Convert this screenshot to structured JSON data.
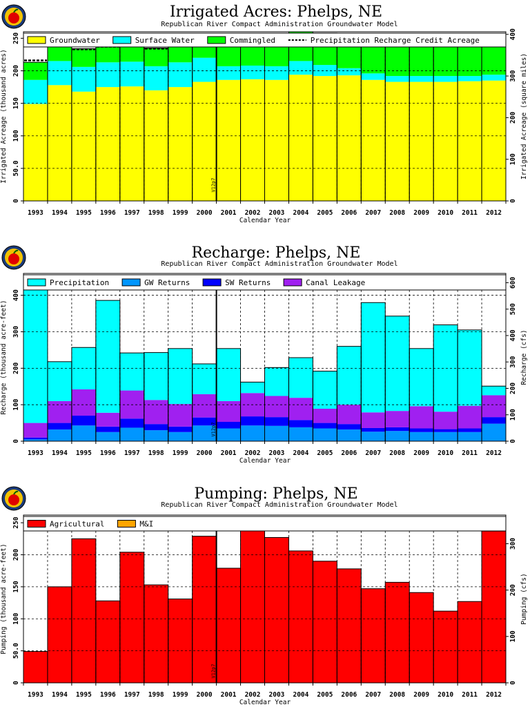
{
  "subtitle": "Republican River Compact Administration Groundwater Model",
  "marker_label": "V12p7",
  "chart_data": [
    {
      "id": "irrigated",
      "type": "bar",
      "title": "Irrigated Acres: Phelps, NE",
      "xlabel": "Calendar Year",
      "ylabel": "Irrigated Acreage (thousand acres)",
      "ylabel_right": "Irrigated Acreage (square miles)",
      "stacked": true,
      "ylim": [
        0,
        260
      ],
      "y_ticks": [
        "0",
        "50.0",
        "100",
        "150",
        "200",
        "250"
      ],
      "y_tick_values": [
        0,
        50,
        100,
        150,
        200,
        250
      ],
      "y2_ticks": [
        "0",
        "100",
        "200",
        "300",
        "400"
      ],
      "y2_tick_values": [
        0,
        100,
        200,
        300,
        400
      ],
      "y2_per_y": 1.5625,
      "legend_position": "top",
      "categories": [
        "1993",
        "1994",
        "1995",
        "1996",
        "1997",
        "1998",
        "1999",
        "2000",
        "2001",
        "2002",
        "2003",
        "2004",
        "2005",
        "2006",
        "2007",
        "2008",
        "2009",
        "2010",
        "2011",
        "2012"
      ],
      "series": [
        {
          "name": "Groundwater",
          "color": "#ffff00",
          "values": [
            149,
            178,
            168,
            175,
            176,
            170,
            175,
            183,
            186,
            187,
            186,
            194,
            192,
            193,
            186,
            183,
            183,
            183,
            184,
            185
          ]
        },
        {
          "name": "Surface Water",
          "color": "#00ffff",
          "values": [
            37,
            37,
            38,
            38,
            38,
            37,
            38,
            37,
            21,
            21,
            21,
            21,
            17,
            11,
            10,
            9,
            9,
            9,
            8,
            9
          ]
        },
        {
          "name": "Commingled",
          "color": "#00ff00",
          "values": [
            27,
            28,
            28,
            27,
            28,
            28,
            28,
            28,
            45,
            45,
            44,
            45,
            49,
            52,
            52,
            54,
            54,
            54,
            55,
            53
          ]
        }
      ],
      "line_series": {
        "name": "Precipitation Recharge Credit Acreage",
        "style": "dashed",
        "values": [
          216,
          240,
          233,
          237,
          240,
          234,
          239,
          244,
          247,
          247,
          247,
          251,
          251,
          249,
          244,
          242,
          242,
          242,
          243,
          243
        ]
      }
    },
    {
      "id": "recharge",
      "type": "bar",
      "title": "Recharge: Phelps, NE",
      "xlabel": "Calendar Year",
      "ylabel": "Recharge (thousand acre-feet)",
      "ylabel_right": "Recharge (cfs)",
      "stacked": true,
      "ylim": [
        0,
        460
      ],
      "y_ticks": [
        "0",
        "100",
        "200",
        "300",
        "400"
      ],
      "y_tick_values": [
        0,
        100,
        200,
        300,
        400
      ],
      "y2_ticks": [
        "0",
        "100",
        "200",
        "300",
        "400",
        "500",
        "600"
      ],
      "y2_tick_values": [
        0,
        100,
        200,
        300,
        400,
        500,
        600
      ],
      "y2_per_y": 1.381,
      "legend_position": "top",
      "categories": [
        "1993",
        "1994",
        "1995",
        "1996",
        "1997",
        "1998",
        "1999",
        "2000",
        "2001",
        "2002",
        "2003",
        "2004",
        "2005",
        "2006",
        "2007",
        "2008",
        "2009",
        "2010",
        "2011",
        "2012"
      ],
      "series": [
        {
          "name": "GW Returns",
          "color": "#0096ff",
          "values": [
            5,
            32,
            43,
            25,
            37,
            30,
            25,
            43,
            35,
            43,
            42,
            38,
            35,
            32,
            26,
            28,
            25,
            25,
            25,
            48
          ]
        },
        {
          "name": "SW Returns",
          "color": "#0000ff",
          "values": [
            5,
            18,
            27,
            15,
            25,
            17,
            15,
            22,
            18,
            25,
            24,
            20,
            15,
            15,
            10,
            10,
            10,
            8,
            10,
            18
          ]
        },
        {
          "name": "Canal Leakage",
          "color": "#a020f0",
          "values": [
            40,
            60,
            72,
            38,
            77,
            66,
            62,
            64,
            57,
            64,
            58,
            61,
            39,
            53,
            43,
            45,
            61,
            48,
            62,
            60
          ]
        },
        {
          "name": "Precipitation",
          "color": "#00ffff",
          "values": [
            405,
            108,
            115,
            308,
            103,
            130,
            152,
            83,
            144,
            30,
            78,
            110,
            103,
            160,
            301,
            260,
            158,
            238,
            208,
            25
          ]
        }
      ]
    },
    {
      "id": "pumping",
      "type": "bar",
      "title": "Pumping: Phelps, NE",
      "xlabel": "Calendar Year",
      "ylabel": "Pumping (thousand acre-feet)",
      "ylabel_right": "Pumping (cfs)",
      "stacked": true,
      "ylim": [
        0,
        262
      ],
      "y_ticks": [
        "0",
        "50.0",
        "100",
        "150",
        "200",
        "250"
      ],
      "y_tick_values": [
        0,
        50,
        100,
        150,
        200,
        250
      ],
      "y2_ticks": [
        "0",
        "100",
        "200",
        "300"
      ],
      "y2_tick_values": [
        0,
        100,
        200,
        300
      ],
      "y2_per_y": 1.381,
      "legend_position": "top",
      "categories": [
        "1993",
        "1994",
        "1995",
        "1996",
        "1997",
        "1998",
        "1999",
        "2000",
        "2001",
        "2002",
        "2003",
        "2004",
        "2005",
        "2006",
        "2007",
        "2008",
        "2009",
        "2010",
        "2011",
        "2012"
      ],
      "series": [
        {
          "name": "Agricultural",
          "color": "#ff0000",
          "values": [
            49,
            150,
            225,
            128,
            204,
            153,
            131,
            229,
            179,
            243,
            227,
            206,
            190,
            178,
            147,
            157,
            141,
            112,
            127,
            237
          ]
        },
        {
          "name": "M&I",
          "color": "#ffa500",
          "values": [
            0,
            0,
            0,
            0,
            0,
            0,
            0,
            0,
            0,
            0,
            0,
            0,
            0,
            0,
            0,
            0,
            0,
            0,
            0,
            0
          ]
        }
      ]
    }
  ]
}
